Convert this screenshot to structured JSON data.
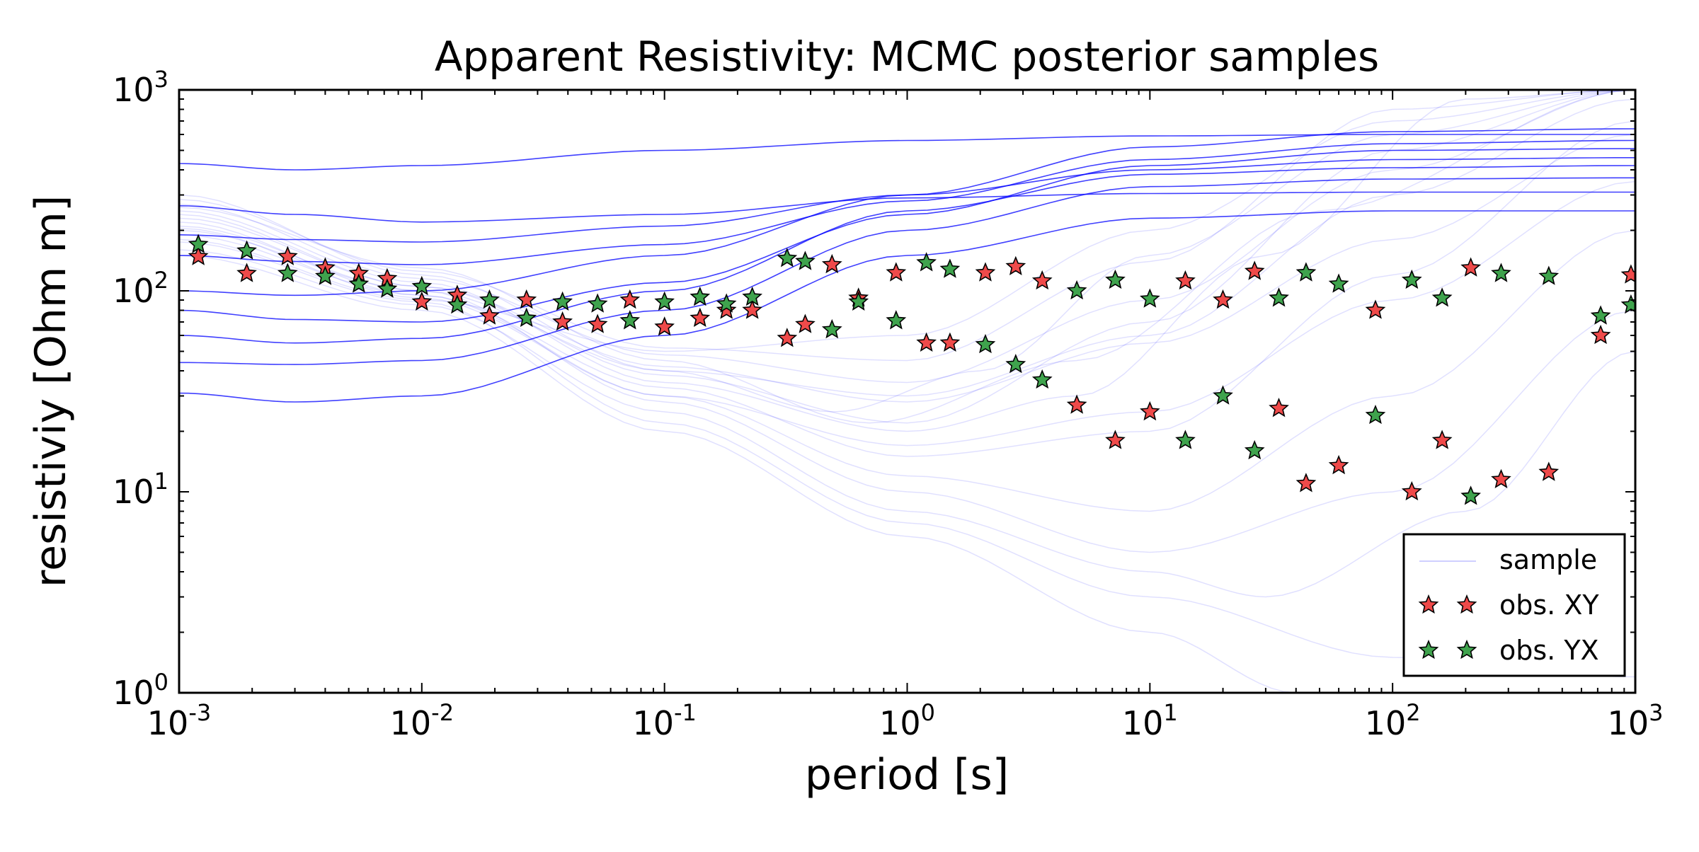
{
  "chart_data": {
    "type": "line",
    "title": "Apparent Resistivity: MCMC posterior samples",
    "xlabel": "period [s]",
    "ylabel": "resistiviy [Ohm m]",
    "x_scale": "log",
    "y_scale": "log",
    "xlim": [
      0.001,
      1000
    ],
    "ylim": [
      1,
      1000
    ],
    "x_ticks": [
      {
        "base": "10",
        "exp": "-3"
      },
      {
        "base": "10",
        "exp": "-2"
      },
      {
        "base": "10",
        "exp": "-1"
      },
      {
        "base": "10",
        "exp": "0"
      },
      {
        "base": "10",
        "exp": "1"
      },
      {
        "base": "10",
        "exp": "2"
      },
      {
        "base": "10",
        "exp": "3"
      }
    ],
    "y_ticks": [
      {
        "base": "10",
        "exp": "0"
      },
      {
        "base": "10",
        "exp": "1"
      },
      {
        "base": "10",
        "exp": "2"
      },
      {
        "base": "10",
        "exp": "3"
      }
    ],
    "grid": false,
    "legend_position": "bottom-right",
    "legend": [
      {
        "label": "sample",
        "marker": "line",
        "color": "#0000ff"
      },
      {
        "label": "obs. XY",
        "marker": "star",
        "color": "#ef4a4a"
      },
      {
        "label": "obs. YX",
        "marker": "star",
        "color": "#3fa34d"
      }
    ],
    "sample_curves": {
      "description_color": "#0000ff",
      "highlighted": [
        [
          [
            0.001,
            430
          ],
          [
            0.003,
            400
          ],
          [
            0.01,
            420
          ],
          [
            0.1,
            500
          ],
          [
            1,
            560
          ],
          [
            10,
            590
          ],
          [
            100,
            600
          ],
          [
            1000,
            600
          ]
        ],
        [
          [
            0.001,
            265
          ],
          [
            0.003,
            240
          ],
          [
            0.01,
            220
          ],
          [
            0.1,
            240
          ],
          [
            1,
            290
          ],
          [
            10,
            305
          ],
          [
            100,
            310
          ],
          [
            1000,
            310
          ]
        ],
        [
          [
            0.001,
            190
          ],
          [
            0.003,
            180
          ],
          [
            0.01,
            175
          ],
          [
            0.1,
            210
          ],
          [
            1,
            300
          ],
          [
            10,
            400
          ],
          [
            100,
            450
          ],
          [
            1000,
            460
          ]
        ],
        [
          [
            0.001,
            150
          ],
          [
            0.003,
            140
          ],
          [
            0.01,
            135
          ],
          [
            0.1,
            170
          ],
          [
            1,
            280
          ],
          [
            10,
            450
          ],
          [
            100,
            540
          ],
          [
            1000,
            560
          ]
        ],
        [
          [
            0.001,
            100
          ],
          [
            0.003,
            95
          ],
          [
            0.01,
            100
          ],
          [
            0.1,
            150
          ],
          [
            1,
            300
          ],
          [
            10,
            520
          ],
          [
            100,
            620
          ],
          [
            1000,
            640
          ]
        ],
        [
          [
            0.001,
            80
          ],
          [
            0.003,
            72
          ],
          [
            0.01,
            70
          ],
          [
            0.1,
            110
          ],
          [
            1,
            240
          ],
          [
            10,
            420
          ],
          [
            100,
            500
          ],
          [
            1000,
            510
          ]
        ],
        [
          [
            0.001,
            60
          ],
          [
            0.003,
            55
          ],
          [
            0.01,
            58
          ],
          [
            0.1,
            100
          ],
          [
            1,
            250
          ],
          [
            10,
            380
          ],
          [
            100,
            410
          ],
          [
            1000,
            420
          ]
        ],
        [
          [
            0.001,
            44
          ],
          [
            0.003,
            43
          ],
          [
            0.01,
            45
          ],
          [
            0.1,
            80
          ],
          [
            1,
            200
          ],
          [
            10,
            330
          ],
          [
            100,
            360
          ],
          [
            1000,
            365
          ]
        ],
        [
          [
            0.001,
            31
          ],
          [
            0.003,
            28
          ],
          [
            0.01,
            30
          ],
          [
            0.1,
            60
          ],
          [
            1,
            150
          ],
          [
            10,
            230
          ],
          [
            100,
            250
          ],
          [
            1000,
            250
          ]
        ]
      ],
      "faint": [
        [
          [
            0.001,
            300
          ],
          [
            0.01,
            120
          ],
          [
            0.1,
            40
          ],
          [
            0.5,
            25
          ],
          [
            2,
            40
          ],
          [
            10,
            150
          ],
          [
            100,
            600
          ],
          [
            1000,
            1000
          ]
        ],
        [
          [
            0.001,
            250
          ],
          [
            0.01,
            110
          ],
          [
            0.1,
            35
          ],
          [
            1,
            20
          ],
          [
            5,
            30
          ],
          [
            30,
            150
          ],
          [
            200,
            900
          ],
          [
            1000,
            1000
          ]
        ],
        [
          [
            0.001,
            220
          ],
          [
            0.01,
            95
          ],
          [
            0.1,
            30
          ],
          [
            1,
            12
          ],
          [
            10,
            8
          ],
          [
            100,
            30
          ],
          [
            1000,
            200
          ]
        ],
        [
          [
            0.001,
            200
          ],
          [
            0.01,
            100
          ],
          [
            0.1,
            40
          ],
          [
            1,
            30
          ],
          [
            10,
            60
          ],
          [
            100,
            300
          ],
          [
            1000,
            900
          ]
        ],
        [
          [
            0.001,
            180
          ],
          [
            0.01,
            90
          ],
          [
            0.1,
            50
          ],
          [
            1,
            60
          ],
          [
            10,
            200
          ],
          [
            100,
            700
          ],
          [
            1000,
            1000
          ]
        ],
        [
          [
            0.001,
            160
          ],
          [
            0.01,
            85
          ],
          [
            0.1,
            25
          ],
          [
            1,
            8
          ],
          [
            10,
            4
          ],
          [
            30,
            3
          ],
          [
            200,
            8
          ],
          [
            1000,
            50
          ]
        ],
        [
          [
            0.001,
            150
          ],
          [
            0.01,
            80
          ],
          [
            0.1,
            20
          ],
          [
            1,
            6
          ],
          [
            10,
            2
          ],
          [
            40,
            1
          ],
          [
            1000,
            1
          ]
        ],
        [
          [
            0.001,
            260
          ],
          [
            0.01,
            130
          ],
          [
            0.1,
            45
          ],
          [
            0.7,
            22
          ],
          [
            5,
            45
          ],
          [
            50,
            250
          ],
          [
            1000,
            1000
          ]
        ],
        [
          [
            0.001,
            230
          ],
          [
            0.01,
            105
          ],
          [
            0.1,
            38
          ],
          [
            1,
            22
          ],
          [
            10,
            70
          ],
          [
            100,
            500
          ],
          [
            1000,
            1000
          ]
        ],
        [
          [
            0.001,
            210
          ],
          [
            0.01,
            100
          ],
          [
            0.1,
            28
          ],
          [
            1,
            10
          ],
          [
            10,
            5
          ],
          [
            100,
            10
          ],
          [
            1000,
            80
          ]
        ],
        [
          [
            0.001,
            190
          ],
          [
            0.01,
            95
          ],
          [
            0.1,
            33
          ],
          [
            1,
            15
          ],
          [
            10,
            20
          ],
          [
            100,
            120
          ],
          [
            1000,
            700
          ]
        ],
        [
          [
            0.001,
            270
          ],
          [
            0.01,
            115
          ],
          [
            0.1,
            48
          ],
          [
            1,
            35
          ],
          [
            10,
            90
          ],
          [
            100,
            400
          ],
          [
            1000,
            1000
          ]
        ],
        [
          [
            0.001,
            175
          ],
          [
            0.01,
            88
          ],
          [
            0.1,
            22
          ],
          [
            1,
            7
          ],
          [
            10,
            3
          ],
          [
            100,
            1.5
          ],
          [
            1000,
            1.2
          ]
        ],
        [
          [
            0.001,
            240
          ],
          [
            0.01,
            105
          ],
          [
            0.1,
            42
          ],
          [
            1,
            28
          ],
          [
            10,
            55
          ],
          [
            100,
            180
          ],
          [
            1000,
            600
          ]
        ],
        [
          [
            0.001,
            205
          ],
          [
            0.01,
            92
          ],
          [
            0.1,
            30
          ],
          [
            1,
            17
          ],
          [
            10,
            25
          ],
          [
            100,
            90
          ],
          [
            1000,
            350
          ]
        ],
        [
          [
            0.001,
            285
          ],
          [
            0.01,
            125
          ],
          [
            0.1,
            52
          ],
          [
            1,
            45
          ],
          [
            10,
            140
          ],
          [
            100,
            800
          ],
          [
            1000,
            1000
          ]
        ]
      ]
    },
    "series": [
      {
        "name": "obs. XY",
        "color": "#ef4a4a",
        "marker": "star",
        "x": [
          0.0012,
          0.0019,
          0.0028,
          0.004,
          0.0055,
          0.0072,
          0.01,
          0.014,
          0.019,
          0.027,
          0.038,
          0.053,
          0.072,
          0.1,
          0.14,
          0.18,
          0.23,
          0.32,
          0.38,
          0.49,
          0.63,
          0.9,
          1.2,
          1.5,
          2.1,
          2.8,
          3.6,
          5.0,
          7.2,
          10.0,
          14.0,
          20.0,
          27.0,
          34.0,
          44.0,
          60.0,
          85.0,
          120.0,
          160.0,
          210.0,
          280.0,
          440.0,
          720.0,
          960.0
        ],
        "y": [
          148,
          122,
          148,
          130,
          122,
          115,
          88,
          95,
          75,
          90,
          70,
          68,
          90,
          66,
          73,
          80,
          80,
          58,
          68,
          135,
          92,
          123,
          55,
          55,
          123,
          132,
          112,
          27,
          18,
          25,
          112,
          90,
          125,
          26,
          11,
          13.5,
          80,
          10,
          18,
          130,
          11.5,
          12.5,
          60,
          120
        ]
      },
      {
        "name": "obs. YX",
        "color": "#3fa34d",
        "marker": "star",
        "x": [
          0.0012,
          0.0019,
          0.0028,
          0.004,
          0.0055,
          0.0072,
          0.01,
          0.014,
          0.019,
          0.027,
          0.038,
          0.053,
          0.072,
          0.1,
          0.14,
          0.18,
          0.23,
          0.32,
          0.38,
          0.49,
          0.63,
          0.9,
          1.2,
          1.5,
          2.1,
          2.8,
          3.6,
          5.0,
          7.2,
          10.0,
          14.0,
          20.0,
          27.0,
          34.0,
          44.0,
          60.0,
          85.0,
          120.0,
          160.0,
          210.0,
          280.0,
          440.0,
          720.0,
          960.0
        ],
        "y": [
          170,
          158,
          122,
          118,
          108,
          102,
          105,
          85,
          90,
          73,
          88,
          86,
          71,
          88,
          93,
          86,
          93,
          145,
          140,
          64,
          88,
          71,
          138,
          128,
          54,
          43,
          36,
          100,
          113,
          91,
          18,
          30,
          16,
          92,
          123,
          108,
          24,
          113,
          92,
          9.5,
          122,
          118,
          75,
          85
        ]
      }
    ]
  }
}
